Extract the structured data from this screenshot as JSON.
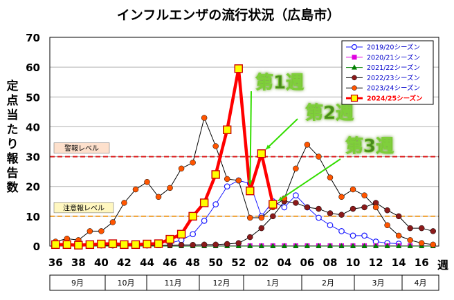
{
  "chart_data": {
    "type": "line",
    "title": "インフルエンザの流行状況（広島市）",
    "ylabel": "定点当たり報告数",
    "xlabel": "週",
    "ylim": [
      0,
      70
    ],
    "yticks": [
      0,
      10,
      20,
      30,
      40,
      50,
      60,
      70
    ],
    "grid": "horizontal",
    "legend_position": "top-right",
    "x_ticks": [
      "36",
      "38",
      "40",
      "42",
      "44",
      "46",
      "48",
      "50",
      "52",
      "02",
      "04",
      "06",
      "08",
      "10",
      "12",
      "14",
      "16"
    ],
    "months": [
      "9月",
      "10月",
      "11月",
      "12月",
      "1月",
      "2月",
      "3月",
      "4月"
    ],
    "weeks": [
      "36",
      "37",
      "38",
      "39",
      "40",
      "41",
      "42",
      "43",
      "44",
      "45",
      "46",
      "47",
      "48",
      "49",
      "50",
      "51",
      "52",
      "01",
      "02",
      "03",
      "04",
      "05",
      "06",
      "07",
      "08",
      "09",
      "10",
      "11",
      "12",
      "13",
      "14",
      "15",
      "16",
      "17"
    ],
    "thresholds": [
      {
        "label": "警報レベル",
        "value": 30,
        "color": "#dd2020"
      },
      {
        "label": "注意報レベル",
        "value": 10,
        "color": "#f0a030"
      }
    ],
    "series": [
      {
        "name": "2019/20シーズン",
        "color": "#1a1aff",
        "marker": "circle-open",
        "values": [
          null,
          null,
          null,
          null,
          null,
          null,
          null,
          null,
          null,
          null,
          1.0,
          2.0,
          4.0,
          8.5,
          14.0,
          20.0,
          22.0,
          21.0,
          10.0,
          15.0,
          13.0,
          17.0,
          13.0,
          9.5,
          7.0,
          5.0,
          3.5,
          3.5,
          1.5,
          1.0,
          0.8,
          null,
          null,
          null
        ]
      },
      {
        "name": "2020/21シーズン",
        "color": "#e000e0",
        "marker": "square",
        "values": [
          0.1,
          0.1,
          0.1,
          0.1,
          0.1,
          0.1,
          0.1,
          0.1,
          0.1,
          0.1,
          0.1,
          0.1,
          0.1,
          0.1,
          0.1,
          0.1,
          0.1,
          0.1,
          0.1,
          0.1,
          0.1,
          0.1,
          0.1,
          0.1,
          0.1,
          0.1,
          0.1,
          0.1,
          0.1,
          0.1,
          0.1,
          0.1,
          0.1,
          0.1
        ]
      },
      {
        "name": "2021/22シーズン",
        "color": "#008000",
        "marker": "triangle",
        "values": [
          0,
          0,
          0,
          0,
          0,
          0,
          0,
          0,
          0,
          0,
          0,
          0,
          0,
          0,
          0,
          0,
          0,
          0,
          0,
          0,
          0,
          0,
          0,
          0,
          0,
          0,
          0,
          0,
          0,
          0,
          0,
          0,
          0,
          0
        ]
      },
      {
        "name": "2022/23シーズン",
        "color": "#8b1a1a",
        "marker": "circle",
        "values": [
          0.2,
          0.2,
          0.2,
          0.2,
          0.2,
          0.2,
          0.2,
          0.2,
          0.2,
          0.3,
          0.3,
          0.4,
          0.4,
          0.5,
          0.5,
          0.7,
          1.0,
          3.0,
          6.0,
          10.0,
          15.0,
          14.5,
          13.0,
          12.5,
          11.0,
          10.5,
          12.5,
          13.0,
          14.5,
          12.0,
          10.0,
          6.0,
          6.0,
          5.0
        ]
      },
      {
        "name": "2023/24シーズン",
        "color": "#ff5500",
        "marker": "circle",
        "values": [
          1.5,
          2.5,
          2.0,
          5.0,
          5.0,
          8.0,
          14.5,
          19.0,
          21.5,
          16.5,
          19.5,
          26.0,
          28.0,
          43.0,
          33.5,
          22.5,
          22.0,
          9.5,
          9.5,
          13.0,
          16.0,
          26.0,
          34.0,
          30.0,
          23.0,
          16.5,
          19.0,
          17.0,
          13.0,
          7.0,
          3.5,
          2.0,
          1.0,
          0.5
        ]
      },
      {
        "name": "2024/25シーズン",
        "color": "#ff0000",
        "marker": "square-yellow",
        "bold": true,
        "values": [
          0.5,
          0.5,
          0.3,
          0.5,
          0.7,
          0.8,
          0.5,
          0.5,
          0.7,
          0.8,
          2.3,
          4.0,
          10.0,
          14.5,
          24.0,
          39.0,
          59.5,
          18.5,
          31.0,
          14.0,
          null,
          null,
          null,
          null,
          null,
          null,
          null,
          null,
          null,
          null,
          null,
          null,
          null,
          null
        ]
      }
    ],
    "annotations": [
      {
        "text": "第1週",
        "week": "01",
        "value": 18.5
      },
      {
        "text": "第2週",
        "week": "02",
        "value": 31.0
      },
      {
        "text": "第3週",
        "week": "03",
        "value": 14.0
      }
    ]
  }
}
